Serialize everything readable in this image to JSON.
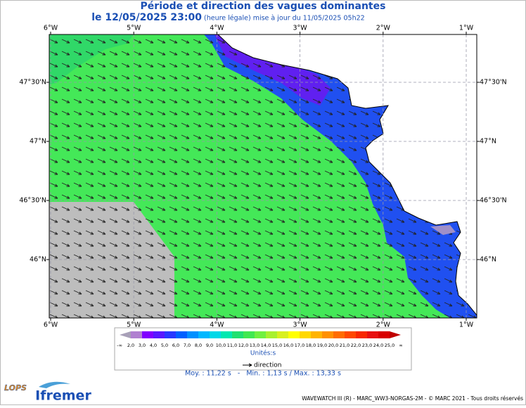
{
  "header": {
    "title": "Période et direction des vagues dominantes",
    "date": "le 12/05/2025 23:00",
    "update": "(heure légale) mise à jour du 11/05/2025 05h22"
  },
  "map": {
    "longitudes": [
      "6°W",
      "5°W",
      "4°W",
      "3°W",
      "2°W",
      "1°W"
    ],
    "latitudes": [
      "47°30'N",
      "47°N",
      "46°30'N",
      "46°N"
    ]
  },
  "legend": {
    "labels": [
      "-∞",
      "2,0",
      "3,0",
      "4,0",
      "5,0",
      "6,0",
      "7,0",
      "8,0",
      "9,0",
      "10,0",
      "11,0",
      "12,0",
      "13,0",
      "14,0",
      "15,0",
      "16,0",
      "17,0",
      "18,0",
      "19,0",
      "20,0",
      "21,0",
      "22,0",
      "23,0",
      "24,0",
      "25,0",
      "∞"
    ],
    "colors": [
      "#a8a0b8",
      "#b080d0",
      "#8000ff",
      "#5818ff",
      "#2838ff",
      "#0060ff",
      "#0090ff",
      "#00b8ff",
      "#00d8e8",
      "#00e8b0",
      "#20e070",
      "#40e850",
      "#70f040",
      "#a8f030",
      "#d8f020",
      "#ffff00",
      "#ffd800",
      "#ffb400",
      "#ff9000",
      "#ff6c00",
      "#ff4800",
      "#f82800",
      "#e81010",
      "#d80000",
      "#c00000"
    ],
    "unit": "Unités:s",
    "direction": "direction",
    "stats": "Moy. : 11,22 s   -   Min. : 1,13 s / Max. : 13,33 s"
  },
  "footer": {
    "credit": "WAVEWATCH III (R) - MARC_WW3-NORGAS-2M - © MARC 2021 - Tous droits réservés",
    "logo_left": "LOPS",
    "logo_right": "Ifremer"
  }
}
